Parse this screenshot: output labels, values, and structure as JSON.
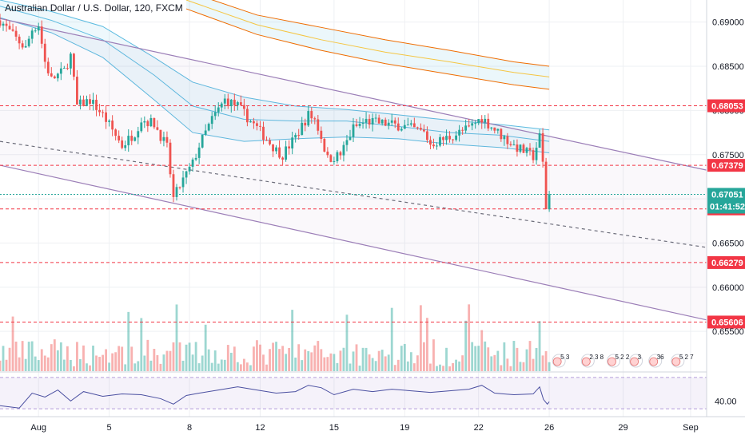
{
  "chart_data": {
    "type": "candlestick",
    "title": "Australian Dollar / U.S. Dollar, 120, FXCM",
    "price_ticks": [
      "0.69000",
      "0.68500",
      "0.68000",
      "0.67500",
      "0.67000",
      "0.66500",
      "0.66000",
      "0.65500"
    ],
    "price_tick_values": [
      0.69,
      0.685,
      0.68,
      0.675,
      0.67,
      0.665,
      0.66,
      0.655
    ],
    "y_range": [
      0.6505,
      0.6925
    ],
    "date_ticks": [
      "Aug",
      "5",
      "8",
      "12",
      "15",
      "19",
      "22",
      "26",
      "29",
      "Sep"
    ],
    "date_tick_index": [
      6,
      17,
      29.5,
      40.5,
      52,
      63,
      74.5,
      85.5,
      97,
      107.5
    ],
    "x_index_range": [
      0,
      110
    ],
    "horizontal_levels": [
      {
        "label": "0.68053",
        "value": 0.68053,
        "color": "#f23645",
        "style": "dashed"
      },
      {
        "label": "0.67379",
        "value": 0.67379,
        "color": "#f23645",
        "style": "dashed"
      },
      {
        "label": "0.66886",
        "value": 0.66886,
        "color": "#f23645",
        "style": "dashed"
      },
      {
        "label": "0.66279",
        "value": 0.66279,
        "color": "#f23645",
        "style": "dashed"
      },
      {
        "label": "0.65606",
        "value": 0.65606,
        "color": "#f23645",
        "style": "dashed"
      }
    ],
    "last_price": {
      "label": "0.67051",
      "value": 0.67051,
      "countdown": "01:41:52",
      "color": "#26a69a"
    },
    "channel_lines": [
      {
        "name": "upper",
        "from": [
          0,
          0.6904
        ],
        "to": [
          110,
          0.67325
        ],
        "color": "#9c7fb8"
      },
      {
        "name": "middle",
        "from": [
          0,
          0.6765
        ],
        "to": [
          110,
          0.6645
        ],
        "color": "#6a6d78",
        "style": "dashed"
      },
      {
        "name": "lower",
        "from": [
          0,
          0.6738
        ],
        "to": [
          110,
          0.6563
        ],
        "color": "#9c7fb8"
      }
    ],
    "candle_anchors": [
      [
        0,
        0.6902
      ],
      [
        2,
        0.6885
      ],
      [
        4,
        0.687
      ],
      [
        5,
        0.6892
      ],
      [
        6,
        0.6897
      ],
      [
        7,
        0.6855
      ],
      [
        8,
        0.6835
      ],
      [
        10,
        0.6845
      ],
      [
        11,
        0.6862
      ],
      [
        12,
        0.6805
      ],
      [
        14,
        0.6812
      ],
      [
        16,
        0.6795
      ],
      [
        18,
        0.6772
      ],
      [
        19,
        0.676
      ],
      [
        21,
        0.6775
      ],
      [
        22,
        0.679
      ],
      [
        24,
        0.6785
      ],
      [
        26,
        0.6758
      ],
      [
        27,
        0.67
      ],
      [
        28,
        0.6715
      ],
      [
        30,
        0.674
      ],
      [
        31,
        0.676
      ],
      [
        33,
        0.679
      ],
      [
        35,
        0.6812
      ],
      [
        37,
        0.6805
      ],
      [
        39,
        0.6788
      ],
      [
        41,
        0.6772
      ],
      [
        43,
        0.6755
      ],
      [
        44,
        0.675
      ],
      [
        46,
        0.677
      ],
      [
        48,
        0.6795
      ],
      [
        49,
        0.679
      ],
      [
        50,
        0.677
      ],
      [
        51,
        0.6745
      ],
      [
        53,
        0.675
      ],
      [
        55,
        0.678
      ],
      [
        57,
        0.6788
      ],
      [
        60,
        0.6785
      ],
      [
        63,
        0.6782
      ],
      [
        66,
        0.6775
      ],
      [
        67,
        0.6762
      ],
      [
        70,
        0.677
      ],
      [
        73,
        0.678
      ],
      [
        75,
        0.6792
      ],
      [
        76,
        0.6785
      ],
      [
        78,
        0.6772
      ],
      [
        80,
        0.676
      ],
      [
        82,
        0.6752
      ],
      [
        83,
        0.6748
      ],
      [
        84,
        0.677
      ],
      [
        84.5,
        0.674
      ],
      [
        85,
        0.669
      ],
      [
        85.5,
        0.6705
      ]
    ],
    "moving_averages": [
      {
        "name": "ma-band-upper",
        "color": "#5bbbe0",
        "points": [
          [
            0,
            0.6925
          ],
          [
            8,
            0.6912
          ],
          [
            16,
            0.6895
          ],
          [
            24,
            0.686
          ],
          [
            30,
            0.6832
          ],
          [
            38,
            0.6815
          ],
          [
            46,
            0.6805
          ],
          [
            54,
            0.6801
          ],
          [
            62,
            0.6795
          ],
          [
            70,
            0.6789
          ],
          [
            78,
            0.6784
          ],
          [
            85.5,
            0.6778
          ]
        ]
      },
      {
        "name": "ma-band-mid",
        "color": "#5bbbe0",
        "points": [
          [
            0,
            0.6918
          ],
          [
            8,
            0.6902
          ],
          [
            16,
            0.688
          ],
          [
            24,
            0.684
          ],
          [
            30,
            0.6805
          ],
          [
            38,
            0.679
          ],
          [
            46,
            0.6788
          ],
          [
            54,
            0.6788
          ],
          [
            62,
            0.6782
          ],
          [
            70,
            0.6775
          ],
          [
            78,
            0.6772
          ],
          [
            85.5,
            0.6765
          ]
        ]
      },
      {
        "name": "ma-band-lower",
        "color": "#5bbbe0",
        "points": [
          [
            0,
            0.6905
          ],
          [
            8,
            0.6888
          ],
          [
            16,
            0.686
          ],
          [
            24,
            0.6812
          ],
          [
            30,
            0.6775
          ],
          [
            38,
            0.6765
          ],
          [
            46,
            0.6768
          ],
          [
            54,
            0.677
          ],
          [
            62,
            0.6768
          ],
          [
            70,
            0.6762
          ],
          [
            78,
            0.6758
          ],
          [
            85.5,
            0.6752
          ]
        ]
      },
      {
        "name": "ma-long-upper",
        "color": "#ef6c00",
        "points": [
          [
            29,
            0.6935
          ],
          [
            40,
            0.6908
          ],
          [
            50,
            0.6894
          ],
          [
            60,
            0.688
          ],
          [
            70,
            0.6868
          ],
          [
            80,
            0.6855
          ],
          [
            85.5,
            0.685
          ]
        ]
      },
      {
        "name": "ma-long-mid",
        "color": "#f5c542",
        "points": [
          [
            29,
            0.6925
          ],
          [
            40,
            0.6897
          ],
          [
            50,
            0.688
          ],
          [
            60,
            0.6866
          ],
          [
            70,
            0.6855
          ],
          [
            80,
            0.6843
          ],
          [
            85.5,
            0.6838
          ]
        ]
      },
      {
        "name": "ma-long-lower",
        "color": "#ef6c00",
        "points": [
          [
            29,
            0.6915
          ],
          [
            40,
            0.6886
          ],
          [
            50,
            0.6868
          ],
          [
            60,
            0.6853
          ],
          [
            70,
            0.6841
          ],
          [
            80,
            0.6829
          ],
          [
            85.5,
            0.6824
          ]
        ]
      }
    ],
    "volume_hint": "volume bars colored by candle direction along bottom of price pane",
    "rsi": {
      "tick_label": "40.00",
      "tick_value": 40,
      "range": [
        20,
        75
      ],
      "band": [
        30,
        70
      ],
      "color": "#4a4fa0",
      "points": [
        [
          0,
          34
        ],
        [
          3,
          31
        ],
        [
          5,
          50
        ],
        [
          7,
          45
        ],
        [
          9,
          54
        ],
        [
          11,
          40
        ],
        [
          13,
          52
        ],
        [
          16,
          46
        ],
        [
          19,
          49
        ],
        [
          22,
          48
        ],
        [
          25,
          43
        ],
        [
          27,
          36
        ],
        [
          29,
          47
        ],
        [
          31,
          50
        ],
        [
          34,
          54
        ],
        [
          37,
          58
        ],
        [
          40,
          54
        ],
        [
          43,
          50
        ],
        [
          46,
          52
        ],
        [
          48,
          60
        ],
        [
          50,
          57
        ],
        [
          52,
          48
        ],
        [
          55,
          55
        ],
        [
          58,
          52
        ],
        [
          61,
          55
        ],
        [
          64,
          53
        ],
        [
          67,
          51
        ],
        [
          70,
          53
        ],
        [
          73,
          55
        ],
        [
          75,
          60
        ],
        [
          77,
          50
        ],
        [
          80,
          48
        ],
        [
          83,
          49
        ],
        [
          84,
          58
        ],
        [
          84.6,
          42
        ],
        [
          85.2,
          36
        ],
        [
          85.5,
          39
        ]
      ]
    },
    "event_markers": [
      {
        "index": 87,
        "text": "5 3"
      },
      {
        "index": 91.5,
        "text": "2 3 8"
      },
      {
        "index": 95.5,
        "text": "5 2 2"
      },
      {
        "index": 99,
        "text": "3"
      },
      {
        "index": 102,
        "text": "36"
      },
      {
        "index": 105.5,
        "text": "5 2 7"
      }
    ]
  }
}
